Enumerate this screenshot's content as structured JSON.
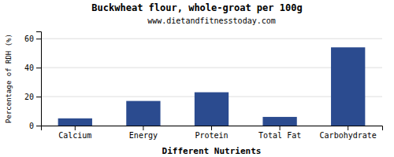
{
  "chart_data": {
    "type": "bar",
    "title": "Buckwheat flour, whole-groat per 100g",
    "subtitle": "www.dietandfitnesstoday.com",
    "categories": [
      "Calcium",
      "Energy",
      "Protein",
      "Total Fat",
      "Carbohydrate"
    ],
    "values": [
      5,
      17,
      23,
      6,
      54
    ],
    "color": "#2b4b8f",
    "xlabel": "Different Nutrients",
    "ylabel": "Percentage of RDH (%)",
    "ylim": [
      0,
      65
    ],
    "yticks": [
      0,
      20,
      40,
      60
    ],
    "grid": true
  }
}
